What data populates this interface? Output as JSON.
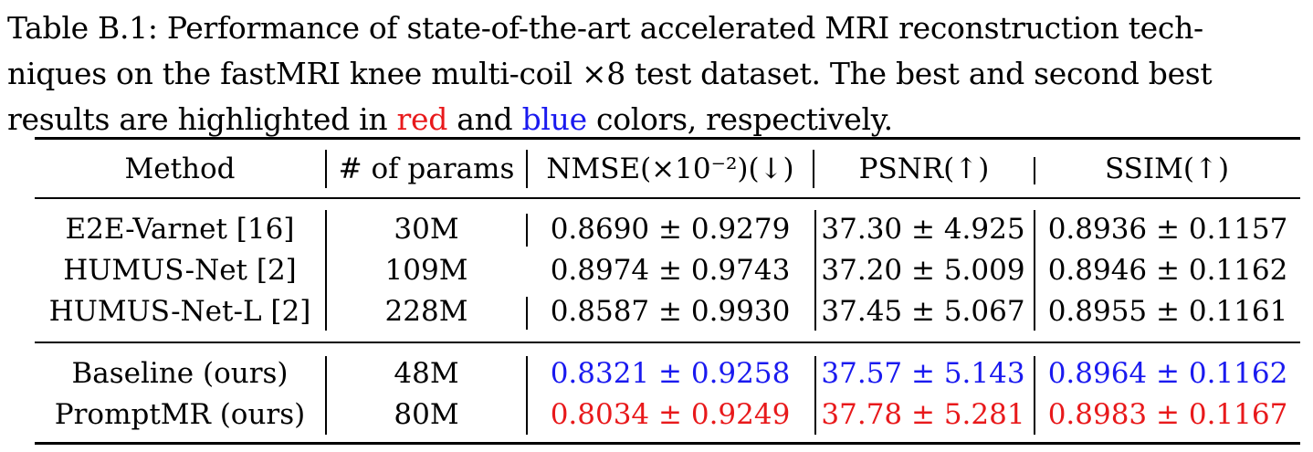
{
  "caption": {
    "line1": "Table B.1: Performance of state-of-the-art accelerated MRI reconstruction tech-",
    "line2": "niques on the fastMRI knee multi-coil ×8 test dataset. The best and second best",
    "line3_pre": "results are highlighted in ",
    "line3_red": "red",
    "line3_mid": " and ",
    "line3_blue": "blue",
    "line3_post": " colors, respectively."
  },
  "colors": {
    "best": "#e8191b",
    "second": "#1a1aef"
  },
  "table": {
    "headers": [
      "Method",
      "# of params",
      "NMSE(×10⁻²)(↓)",
      "PSNR(↑)",
      "SSIM(↑)"
    ],
    "group1": [
      {
        "method": "E2E-Varnet [16]",
        "params": "30M",
        "nmse": "0.8690 ± 0.9279",
        "psnr": "37.30 ± 4.925",
        "ssim": "0.8936 ± 0.1157"
      },
      {
        "method": "HUMUS-Net [2]",
        "params": "109M",
        "nmse": "0.8974 ± 0.9743",
        "psnr": "37.20 ± 5.009",
        "ssim": "0.8946 ± 0.1162"
      },
      {
        "method": "HUMUS-Net-L [2]",
        "params": "228M",
        "nmse": "0.8587 ± 0.9930",
        "psnr": "37.45 ± 5.067",
        "ssim": "0.8955 ± 0.1161"
      }
    ],
    "group2": [
      {
        "method": "Baseline (ours)",
        "params": "48M",
        "nmse": "0.8321 ± 0.9258",
        "psnr": "37.57 ± 5.143",
        "ssim": "0.8964 ± 0.1162"
      },
      {
        "method": "PromptMR (ours)",
        "params": "80M",
        "nmse": "0.8034 ± 0.9249",
        "psnr": "37.78 ± 5.281",
        "ssim": "0.8983 ± 0.1167"
      }
    ]
  }
}
